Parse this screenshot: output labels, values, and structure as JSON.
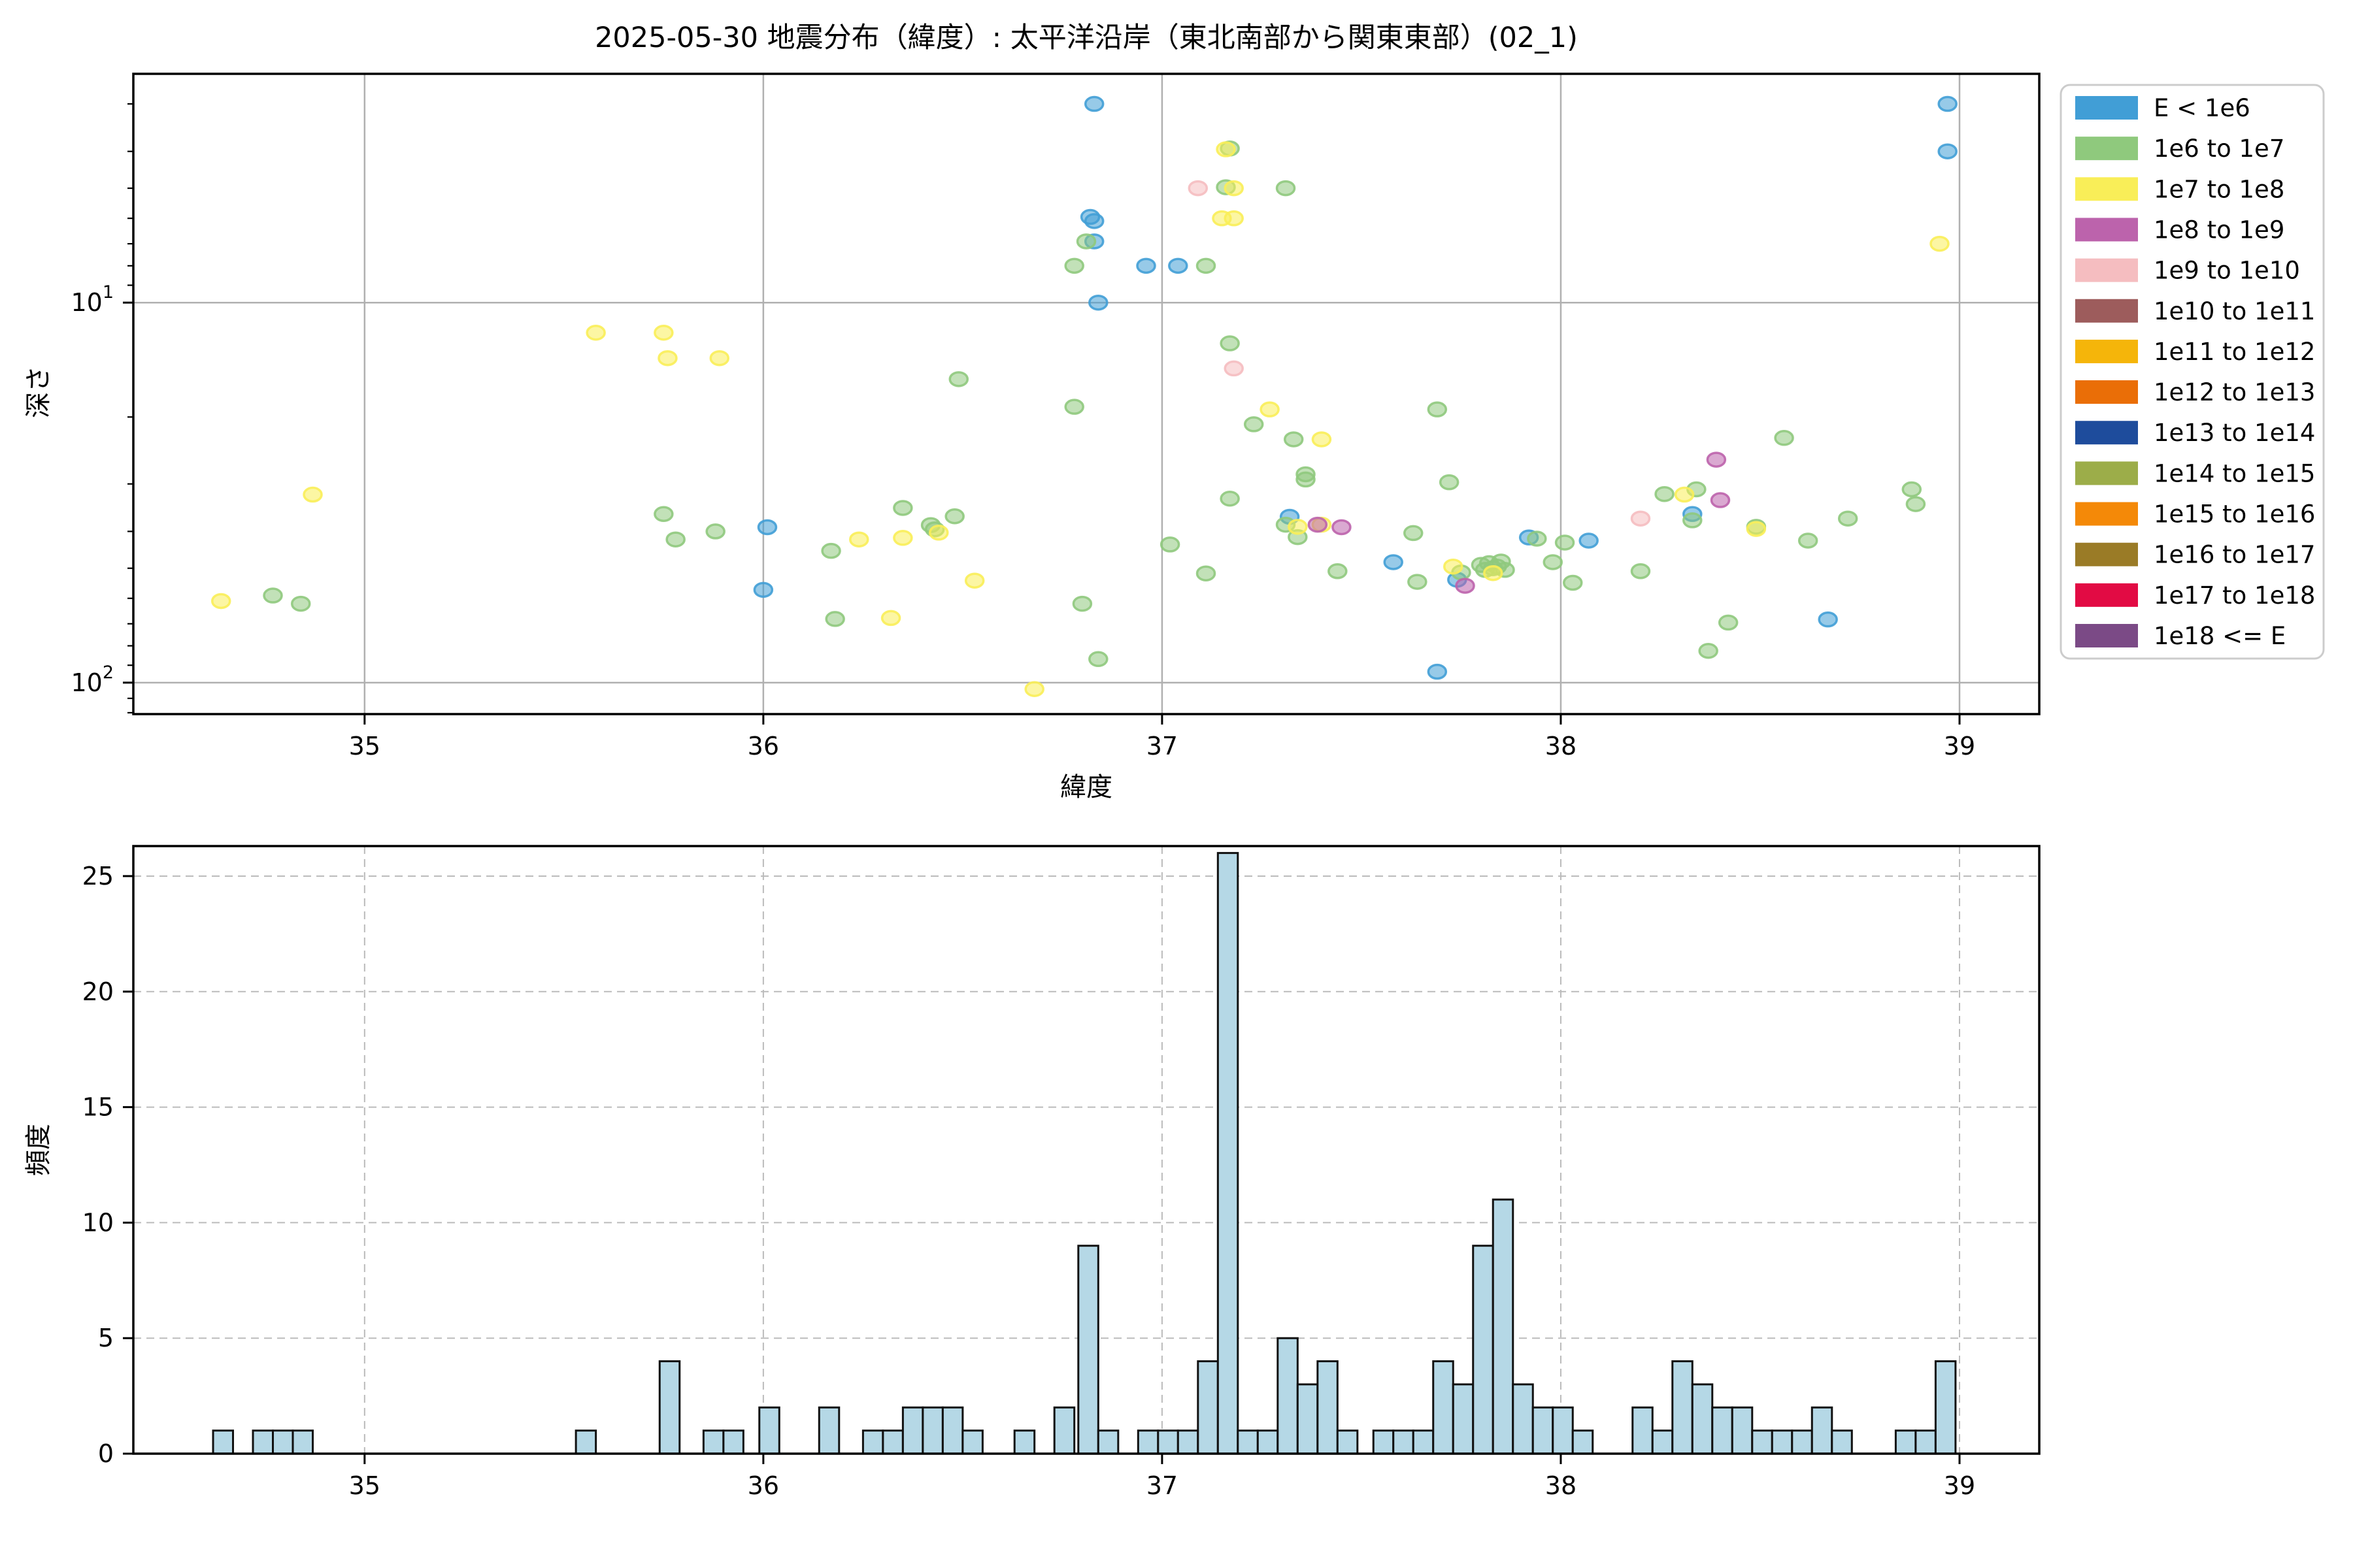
{
  "title": "2025-05-30 地震分布（緯度）: 太平洋沿岸（東北南部から関東東部）(02_1)",
  "legend": {
    "items": [
      {
        "label": "E < 1e6",
        "color": "#419ED6"
      },
      {
        "label": "1e6 to 1e7",
        "color": "#8FC97D"
      },
      {
        "label": "1e7 to 1e8",
        "color": "#F9EE58"
      },
      {
        "label": "1e8 to 1e9",
        "color": "#BC63AC"
      },
      {
        "label": "1e9 to 1e10",
        "color": "#F5BDC0"
      },
      {
        "label": "1e10 to 1e11",
        "color": "#9D5C5C"
      },
      {
        "label": "1e11 to 1e12",
        "color": "#F5B50A"
      },
      {
        "label": "1e12 to 1e13",
        "color": "#EA6E07"
      },
      {
        "label": "1e13 to 1e14",
        "color": "#1E4C9C"
      },
      {
        "label": "1e14 to 1e15",
        "color": "#9CAD49"
      },
      {
        "label": "1e15 to 1e16",
        "color": "#F48908"
      },
      {
        "label": "1e16 to 1e17",
        "color": "#9A7B26"
      },
      {
        "label": "1e17 to 1e18",
        "color": "#E20B44"
      },
      {
        "label": "1e18 <= E",
        "color": "#7B4A86"
      }
    ]
  },
  "chart_data": [
    {
      "type": "scatter",
      "title": "2025-05-30 地震分布（緯度）: 太平洋沿岸（東北南部から関東東部）(02_1)",
      "xlabel": "緯度",
      "ylabel": "深さ",
      "xlim": [
        34.42,
        39.2
      ],
      "ylim": [
        2.5,
        121
      ],
      "yscale": "log-inverted",
      "grid": "solid",
      "legend_position": "outside-right",
      "xticks": [
        35,
        36,
        37,
        38,
        39
      ],
      "yticks_major": [
        10,
        100
      ],
      "yticks_minor": [
        3,
        4,
        5,
        6,
        7,
        8,
        9,
        20,
        30,
        40,
        50,
        60,
        70,
        80,
        90,
        110,
        120
      ],
      "series": [
        {
          "name": "E < 1e6",
          "color": "#419ED6",
          "points": [
            [
              36.01,
              39
            ],
            [
              36.0,
              57
            ],
            [
              36.83,
              3.0
            ],
            [
              36.82,
              5.95
            ],
            [
              36.83,
              6.1
            ],
            [
              36.83,
              6.9
            ],
            [
              36.96,
              8.0
            ],
            [
              36.84,
              10.0
            ],
            [
              37.04,
              8.0
            ],
            [
              37.32,
              36.6
            ],
            [
              37.58,
              48.2
            ],
            [
              37.74,
              53.6
            ],
            [
              37.69,
              93.6
            ],
            [
              37.92,
              41.5
            ],
            [
              38.07,
              42.3
            ],
            [
              38.33,
              36.0
            ],
            [
              38.67,
              68.2
            ],
            [
              38.97,
              3.0
            ],
            [
              38.97,
              4.0
            ]
          ]
        },
        {
          "name": "1e6 to 1e7",
          "color": "#8FC97D",
          "points": [
            [
              34.77,
              59
            ],
            [
              34.84,
              62
            ],
            [
              35.75,
              36
            ],
            [
              35.78,
              42
            ],
            [
              35.88,
              40
            ],
            [
              36.17,
              45
            ],
            [
              36.18,
              68
            ],
            [
              36.81,
              6.9
            ],
            [
              36.78,
              8.0
            ],
            [
              37.11,
              8.0
            ],
            [
              36.49,
              15.9
            ],
            [
              36.78,
              18.8
            ],
            [
              36.35,
              34.7
            ],
            [
              36.42,
              38.5
            ],
            [
              36.43,
              39.5
            ],
            [
              36.48,
              36.5
            ],
            [
              36.8,
              62
            ],
            [
              36.84,
              86.7
            ],
            [
              37.02,
              43.3
            ],
            [
              37.11,
              51.6
            ],
            [
              37.17,
              3.93
            ],
            [
              37.16,
              4.97
            ],
            [
              37.31,
              5.0
            ],
            [
              37.17,
              12.8
            ],
            [
              37.23,
              20.9
            ],
            [
              37.33,
              22.9
            ],
            [
              37.36,
              28.3
            ],
            [
              37.36,
              29.2
            ],
            [
              37.17,
              32.8
            ],
            [
              37.31,
              38.4
            ],
            [
              37.34,
              41.4
            ],
            [
              37.44,
              50.9
            ],
            [
              37.63,
              40.4
            ],
            [
              37.64,
              54.3
            ],
            [
              37.69,
              19.1
            ],
            [
              37.72,
              29.7
            ],
            [
              37.75,
              51.3
            ],
            [
              37.8,
              49
            ],
            [
              37.81,
              50.5
            ],
            [
              37.82,
              48.5
            ],
            [
              37.83,
              50
            ],
            [
              37.84,
              49.5
            ],
            [
              37.85,
              48
            ],
            [
              37.86,
              50.5
            ],
            [
              37.94,
              41.8
            ],
            [
              38.01,
              42.8
            ],
            [
              37.98,
              48.2
            ],
            [
              38.03,
              54.6
            ],
            [
              38.56,
              22.7
            ],
            [
              38.26,
              31.9
            ],
            [
              38.34,
              31.0
            ],
            [
              38.33,
              37.4
            ],
            [
              38.49,
              38.9
            ],
            [
              38.62,
              42.3
            ],
            [
              38.72,
              37.0
            ],
            [
              38.88,
              31.0
            ],
            [
              38.89,
              33.9
            ],
            [
              38.2,
              50.9
            ],
            [
              38.42,
              69.5
            ],
            [
              38.37,
              82.5
            ]
          ]
        },
        {
          "name": "1e7 to 1e8",
          "color": "#F9EE58",
          "points": [
            [
              34.64,
              61
            ],
            [
              34.87,
              32
            ],
            [
              35.58,
              12
            ],
            [
              35.75,
              12
            ],
            [
              35.76,
              14
            ],
            [
              35.89,
              14
            ],
            [
              36.24,
              42
            ],
            [
              36.44,
              40.3
            ],
            [
              36.35,
              41.6
            ],
            [
              36.53,
              53.9
            ],
            [
              36.32,
              67.6
            ],
            [
              36.68,
              104
            ],
            [
              37.16,
              3.95
            ],
            [
              37.18,
              5.0
            ],
            [
              37.15,
              6.0
            ],
            [
              37.18,
              6.0
            ],
            [
              37.27,
              19.1
            ],
            [
              37.4,
              22.9
            ],
            [
              37.34,
              38.9
            ],
            [
              37.4,
              38.4
            ],
            [
              37.73,
              49.5
            ],
            [
              37.83,
              51.5
            ],
            [
              38.31,
              32.0
            ],
            [
              38.49,
              39.4
            ],
            [
              38.95,
              7.0
            ]
          ]
        },
        {
          "name": "1e8 to 1e9",
          "color": "#BC63AC",
          "points": [
            [
              37.39,
              38.4
            ],
            [
              37.45,
              39.0
            ],
            [
              37.76,
              55.6
            ],
            [
              38.39,
              25.9
            ],
            [
              38.4,
              33.1
            ]
          ]
        },
        {
          "name": "1e9 to 1e10",
          "color": "#F5BDC0",
          "points": [
            [
              37.09,
              5.0
            ],
            [
              37.18,
              14.9
            ],
            [
              38.2,
              37.0
            ]
          ]
        }
      ]
    },
    {
      "type": "histogram",
      "xlabel": "緯度",
      "ylabel": "頻度",
      "xlim": [
        34.42,
        39.2
      ],
      "ylim": [
        0,
        26.3
      ],
      "grid": "dashed",
      "xticks": [
        35,
        36,
        37,
        38,
        39
      ],
      "yticks": [
        0,
        5,
        10,
        15,
        20,
        25
      ],
      "bar_color": "#B5D8E6",
      "bar_edge_color": "#111111",
      "bin_width": 0.05,
      "bars": [
        [
          34.62,
          1
        ],
        [
          34.72,
          1
        ],
        [
          34.77,
          1
        ],
        [
          34.82,
          1
        ],
        [
          35.53,
          1
        ],
        [
          35.74,
          4
        ],
        [
          35.85,
          1
        ],
        [
          35.9,
          1
        ],
        [
          35.99,
          2
        ],
        [
          36.14,
          2
        ],
        [
          36.25,
          1
        ],
        [
          36.3,
          1
        ],
        [
          36.35,
          2
        ],
        [
          36.4,
          2
        ],
        [
          36.45,
          2
        ],
        [
          36.5,
          1
        ],
        [
          36.63,
          1
        ],
        [
          36.73,
          2
        ],
        [
          36.79,
          9
        ],
        [
          36.84,
          1
        ],
        [
          36.94,
          1
        ],
        [
          36.99,
          1
        ],
        [
          37.04,
          1
        ],
        [
          37.09,
          4
        ],
        [
          37.14,
          26
        ],
        [
          37.19,
          1
        ],
        [
          37.24,
          1
        ],
        [
          37.29,
          5
        ],
        [
          37.34,
          3
        ],
        [
          37.39,
          4
        ],
        [
          37.44,
          1
        ],
        [
          37.53,
          1
        ],
        [
          37.58,
          1
        ],
        [
          37.63,
          1
        ],
        [
          37.68,
          4
        ],
        [
          37.73,
          3
        ],
        [
          37.78,
          9
        ],
        [
          37.83,
          11
        ],
        [
          37.88,
          3
        ],
        [
          37.93,
          2
        ],
        [
          37.98,
          2
        ],
        [
          38.03,
          1
        ],
        [
          38.18,
          2
        ],
        [
          38.23,
          1
        ],
        [
          38.28,
          4
        ],
        [
          38.33,
          3
        ],
        [
          38.38,
          2
        ],
        [
          38.43,
          2
        ],
        [
          38.48,
          1
        ],
        [
          38.53,
          1
        ],
        [
          38.58,
          1
        ],
        [
          38.63,
          2
        ],
        [
          38.68,
          1
        ],
        [
          38.84,
          1
        ],
        [
          38.89,
          1
        ],
        [
          38.94,
          4
        ]
      ]
    }
  ]
}
